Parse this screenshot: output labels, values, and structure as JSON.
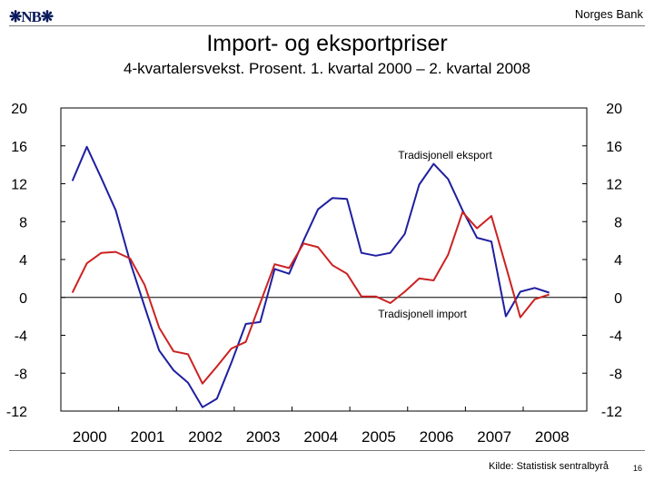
{
  "header": {
    "logo_text": "NB",
    "bank_name": "Norges Bank"
  },
  "title": "Import- og eksportpriser",
  "subtitle": "4-kvartalersvekst. Prosent. 1. kvartal 2000 – 2. kvartal 2008",
  "footer": {
    "source": "Kilde: Statistisk sentralbyrå",
    "page_number": "16"
  },
  "colors": {
    "export_line": "#1f1fa0",
    "import_line": "#cc2222"
  },
  "chart_data": {
    "type": "line",
    "title": "Import- og eksportpriser",
    "subtitle": "4-kvartalersvekst. Prosent. 1. kvartal 2000 – 2. kvartal 2008",
    "xlabel": "",
    "ylabel": "",
    "ylim": [
      -12,
      20
    ],
    "yticks": [
      20,
      16,
      12,
      8,
      4,
      0,
      -4,
      -8,
      -12
    ],
    "ytick_labels": [
      "20",
      "16",
      "12",
      "8",
      "4",
      "0",
      "-4",
      "-8",
      "-12"
    ],
    "x_tick_labels": [
      "2000",
      "2001",
      "2002",
      "2003",
      "2004",
      "2005",
      "2006",
      "2007",
      "2008"
    ],
    "x_start_year": 2000,
    "periods_per_year": 4,
    "series": [
      {
        "name": "Tradisjonell eksport",
        "color": "#1f1fa0",
        "values": [
          12.3,
          15.9,
          12.6,
          9.2,
          3.7,
          -1.0,
          -5.6,
          -7.7,
          -9.0,
          -11.6,
          -10.7,
          -6.9,
          -2.8,
          -2.6,
          3.0,
          2.5,
          6.0,
          9.3,
          10.5,
          10.4,
          4.7,
          4.4,
          4.7,
          6.7,
          11.9,
          14.1,
          12.5,
          9.2,
          6.3,
          5.9,
          -2.0,
          0.6,
          1.0,
          0.5
        ]
      },
      {
        "name": "Tradisjonell import",
        "color": "#cc2222",
        "values": [
          0.5,
          3.6,
          4.7,
          4.8,
          4.1,
          1.3,
          -3.2,
          -5.7,
          -6.0,
          -9.1,
          -7.3,
          -5.4,
          -4.7,
          -0.6,
          3.5,
          3.1,
          5.7,
          5.3,
          3.4,
          2.5,
          0.1,
          0.1,
          -0.6,
          0.6,
          2.0,
          1.8,
          4.5,
          9.0,
          7.3,
          8.6,
          3.3,
          -2.1,
          -0.2,
          0.3
        ]
      }
    ],
    "annotations": [
      {
        "text": "Tradisjonell eksport",
        "series": "Tradisjonell eksport"
      },
      {
        "text": "Tradisjonell import",
        "series": "Tradisjonell import"
      }
    ],
    "zero_line": true,
    "grid": false,
    "legend": "none"
  }
}
